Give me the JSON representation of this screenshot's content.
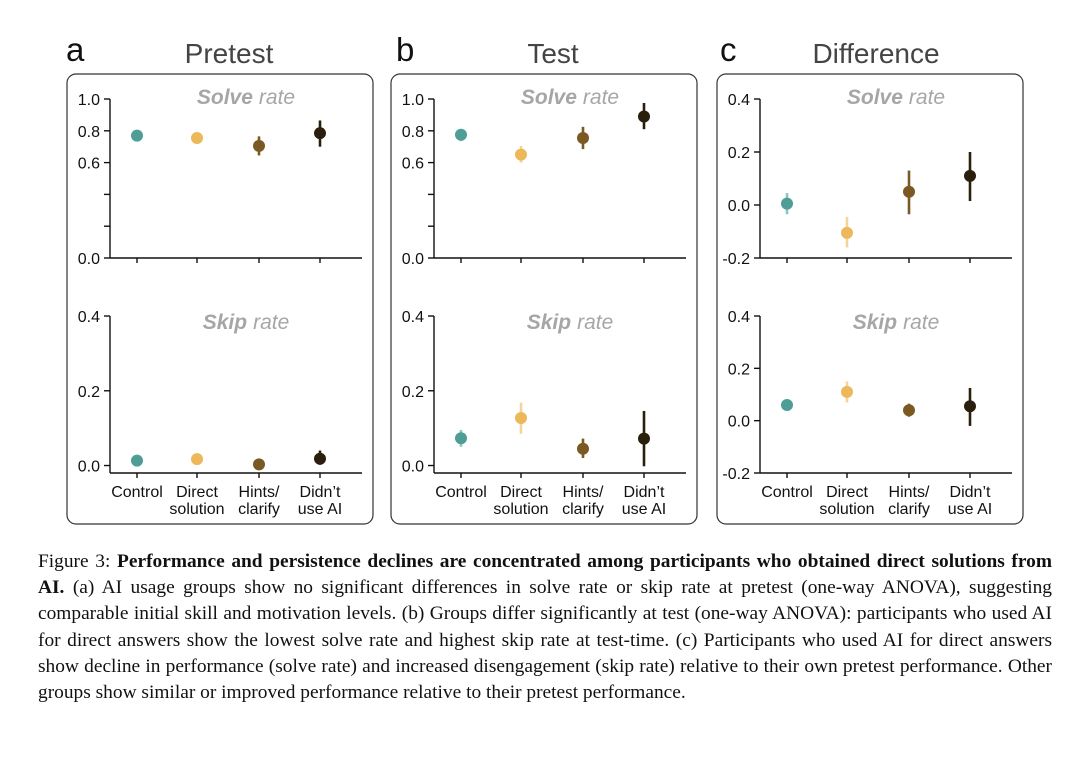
{
  "figure": {
    "categories": [
      "Control",
      "Direct solution",
      "Hints/ clarify",
      "Didn't use AI"
    ],
    "category_lines": [
      [
        "Control"
      ],
      [
        "Direct",
        "solution"
      ],
      [
        "Hints/",
        "clarify"
      ],
      [
        "Didn’t",
        "use AI"
      ]
    ],
    "colors": [
      "#4f9e96",
      "#edb85a",
      "#7a5a22",
      "#2a1e0c"
    ],
    "error_colors": [
      "#8ac7c0",
      "#f3d49c",
      "#7a5a22",
      "#2a1e0c"
    ],
    "panels": [
      {
        "letter": "a",
        "title": "Pretest"
      },
      {
        "letter": "b",
        "title": "Test"
      },
      {
        "letter": "c",
        "title": "Difference"
      }
    ],
    "subplot_titles": {
      "solve": {
        "bold": "Solve",
        "rest": "rate"
      },
      "skip": {
        "bold": "Skip",
        "rest": "rate"
      }
    }
  },
  "chart_data": [
    {
      "type": "scatter",
      "panel": "a",
      "title": "Pretest",
      "subtitle": "Solve rate",
      "categories": [
        "Control",
        "Direct solution",
        "Hints/ clarify",
        "Didn't use AI"
      ],
      "values": [
        0.77,
        0.755,
        0.705,
        0.785
      ],
      "lower": [
        0.74,
        0.72,
        0.645,
        0.7
      ],
      "upper": [
        0.8,
        0.79,
        0.765,
        0.865
      ],
      "ylim": [
        0.0,
        1.0
      ],
      "yticks": [
        0.0,
        0.2,
        0.4,
        0.6,
        0.8,
        1.0
      ],
      "ytick_labels": [
        "0.0",
        "",
        "",
        "0.6",
        "0.8",
        "1.0"
      ]
    },
    {
      "type": "scatter",
      "panel": "a",
      "title": "Pretest",
      "subtitle": "Skip rate",
      "categories": [
        "Control",
        "Direct solution",
        "Hints/ clarify",
        "Didn't use AI"
      ],
      "values": [
        0.013,
        0.017,
        0.003,
        0.018
      ],
      "lower": [
        0.006,
        0.01,
        -0.001,
        0.002
      ],
      "upper": [
        0.02,
        0.024,
        0.007,
        0.04
      ],
      "ylim": [
        -0.02,
        0.4
      ],
      "yticks": [
        0.0,
        0.2,
        0.4
      ],
      "ytick_labels": [
        "0.0",
        "0.2",
        "0.4"
      ]
    },
    {
      "type": "scatter",
      "panel": "b",
      "title": "Test",
      "subtitle": "Solve rate",
      "categories": [
        "Control",
        "Direct solution",
        "Hints/ clarify",
        "Didn't use AI"
      ],
      "values": [
        0.775,
        0.65,
        0.755,
        0.89
      ],
      "lower": [
        0.735,
        0.6,
        0.685,
        0.81
      ],
      "upper": [
        0.81,
        0.705,
        0.825,
        0.975
      ],
      "ylim": [
        0.0,
        1.0
      ],
      "yticks": [
        0.0,
        0.2,
        0.4,
        0.6,
        0.8,
        1.0
      ],
      "ytick_labels": [
        "0.0",
        "",
        "",
        "0.6",
        "0.8",
        "1.0"
      ]
    },
    {
      "type": "scatter",
      "panel": "b",
      "title": "Test",
      "subtitle": "Skip rate",
      "categories": [
        "Control",
        "Direct solution",
        "Hints/ clarify",
        "Didn't use AI"
      ],
      "values": [
        0.073,
        0.127,
        0.045,
        0.072
      ],
      "lower": [
        0.05,
        0.085,
        0.02,
        -0.002
      ],
      "upper": [
        0.095,
        0.168,
        0.072,
        0.146
      ],
      "ylim": [
        -0.02,
        0.4
      ],
      "yticks": [
        0.0,
        0.2,
        0.4
      ],
      "ytick_labels": [
        "0.0",
        "0.2",
        "0.4"
      ]
    },
    {
      "type": "scatter",
      "panel": "c",
      "title": "Difference",
      "subtitle": "Solve rate",
      "categories": [
        "Control",
        "Direct solution",
        "Hints/ clarify",
        "Didn't use AI"
      ],
      "values": [
        0.005,
        -0.105,
        0.05,
        0.11
      ],
      "lower": [
        -0.035,
        -0.16,
        -0.035,
        0.015
      ],
      "upper": [
        0.045,
        -0.045,
        0.13,
        0.2
      ],
      "ylim": [
        -0.2,
        0.4
      ],
      "yticks": [
        -0.2,
        0.0,
        0.2,
        0.4
      ],
      "ytick_labels": [
        "-0.2",
        "0.0",
        "0.2",
        "0.4"
      ]
    },
    {
      "type": "scatter",
      "panel": "c",
      "title": "Difference",
      "subtitle": "Skip rate",
      "categories": [
        "Control",
        "Direct solution",
        "Hints/ clarify",
        "Didn't use AI"
      ],
      "values": [
        0.06,
        0.11,
        0.04,
        0.055
      ],
      "lower": [
        0.045,
        0.07,
        0.015,
        -0.02
      ],
      "upper": [
        0.075,
        0.15,
        0.065,
        0.125
      ],
      "ylim": [
        -0.2,
        0.4
      ],
      "yticks": [
        -0.2,
        0.0,
        0.2,
        0.4
      ],
      "ytick_labels": [
        "-0.2",
        "0.0",
        "0.2",
        "0.4"
      ]
    }
  ],
  "caption": {
    "label": "Figure 3:",
    "bold": "Performance and persistence declines are concentrated among participants who obtained direct solutions from AI.",
    "body": "(a) AI usage groups show no significant differences in solve rate or skip rate at pretest (one-way ANOVA), suggesting comparable initial skill and motivation levels.  (b) Groups differ significantly at test (one-way ANOVA): participants who used AI for direct answers show the lowest solve rate and highest skip rate at test-time. (c) Participants who used AI for direct answers show decline in performance (solve rate) and increased disengagement (skip rate) relative to their own pretest performance. Other groups show similar or improved performance relative to their pretest performance."
  }
}
